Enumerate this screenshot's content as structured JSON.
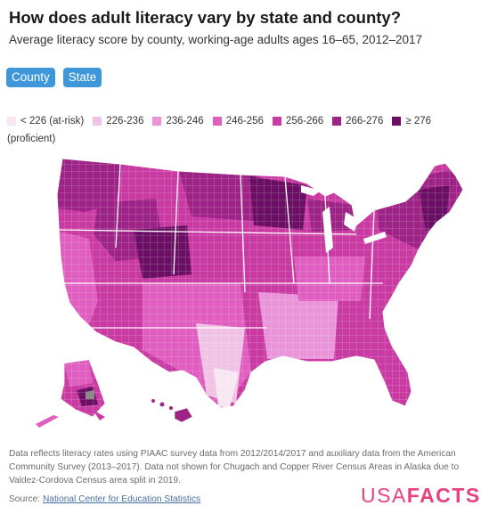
{
  "header": {
    "title": "How does adult literacy vary by state and county?",
    "subtitle": "Average literacy score by county, working-age adults ages 16–65, 2012–2017"
  },
  "toggles": [
    {
      "label": "County",
      "active": true
    },
    {
      "label": "State",
      "active": false
    }
  ],
  "legend": {
    "items": [
      {
        "label": "< 226 (at-risk)",
        "color": "#f8e6f3"
      },
      {
        "label": "226-236",
        "color": "#f0c3e6"
      },
      {
        "label": "236-246",
        "color": "#ea95d9"
      },
      {
        "label": "246-256",
        "color": "#df5ec0"
      },
      {
        "label": "256-266",
        "color": "#c93aa3"
      },
      {
        "label": "266-276",
        "color": "#9e2387"
      },
      {
        "label": "≥ 276",
        "color": "#6a0f63"
      }
    ],
    "note": "(proficient)"
  },
  "map": {
    "regions": [
      "contiguous-us",
      "alaska",
      "hawaii"
    ],
    "no_data_color": "#8c8c8c"
  },
  "footer": {
    "footnote": "Data reflects literacy rates using PIAAC survey data from 2012/2014/2017 and auxiliary data from the American Community Survey (2013–2017). Data not shown for Chugach and Copper River Census Areas in Alaska due to Valdez-Cordova Census area split in 2019.",
    "source_label": "Source:",
    "source_link": "National Center for Education Statistics",
    "logo_part1": "USA",
    "logo_part2": "FACTS"
  }
}
